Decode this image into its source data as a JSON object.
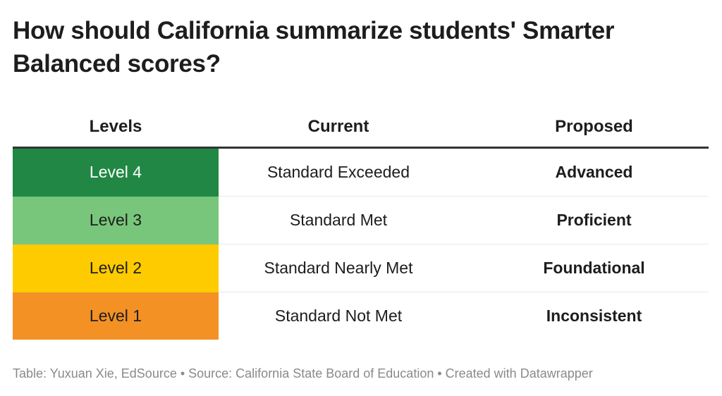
{
  "title": "How should California summarize students' Smarter Balanced scores?",
  "chart_data": {
    "type": "table",
    "columns": [
      "Levels",
      "Current",
      "Proposed"
    ],
    "rows": [
      {
        "level": "Level 4",
        "current": "Standard Exceeded",
        "proposed": "Advanced",
        "color": "#218744",
        "text_color": "#ffffff"
      },
      {
        "level": "Level 3",
        "current": "Standard Met",
        "proposed": "Proficient",
        "color": "#78c67b",
        "text_color": "#1d1d1d"
      },
      {
        "level": "Level 2",
        "current": "Standard Nearly Met",
        "proposed": "Foundational",
        "color": "#fecb00",
        "text_color": "#1d1d1d"
      },
      {
        "level": "Level 1",
        "current": "Standard Not Met",
        "proposed": "Inconsistent",
        "color": "#f39125",
        "text_color": "#1d1d1d"
      }
    ]
  },
  "footer": "Table: Yuxuan Xie, EdSource • Source: California State Board of Education • Created with Datawrapper"
}
